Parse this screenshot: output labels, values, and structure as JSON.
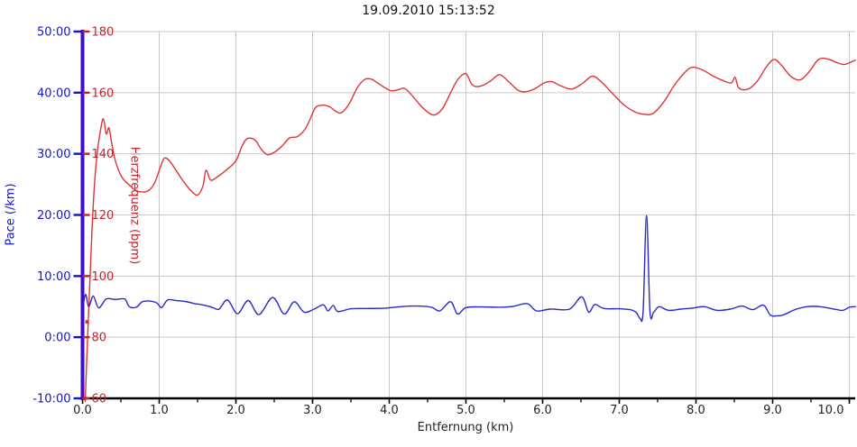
{
  "chart_data": {
    "type": "line",
    "title": "19.09.2010 15:13:52",
    "xlabel": "Entfernung (km)",
    "x_tick_labels": [
      "0.0",
      "1.0",
      "2.0",
      "3.0",
      "4.0",
      "5.0",
      "6.0",
      "7.0",
      "8.0",
      "9.0",
      "10.0"
    ],
    "x_tick_values": [
      0,
      1,
      2,
      3,
      4,
      5,
      6,
      7,
      8,
      9,
      10
    ],
    "x_minor_tick_interval": 0.5,
    "x_range": [
      0,
      10.08
    ],
    "grid": true,
    "grid_color": "#c8c8c8",
    "x_axis_color": "#000000",
    "y_axis_line_color": "#3e0fc6",
    "axes": {
      "pace": {
        "label": "Pace (/km)",
        "color": "#1414c8",
        "tick_labels": [
          "50:00",
          "40:00",
          "30:00",
          "20:00",
          "10:00",
          "0:00",
          "-10:00"
        ],
        "tick_values": [
          50,
          40,
          30,
          20,
          10,
          0,
          -10
        ],
        "range": [
          -10,
          50
        ],
        "unit": "min/km"
      },
      "hr": {
        "label": "Herzfrequenz (bpm)",
        "color": "#cc2029",
        "tick_labels": [
          "180",
          "160",
          "140",
          "120",
          "100",
          "80",
          "60"
        ],
        "tick_values": [
          180,
          160,
          140,
          120,
          100,
          80,
          60
        ],
        "range": [
          60,
          180
        ],
        "unit": "bpm"
      }
    },
    "start_marker": {
      "km": 0.06,
      "bpm": 85,
      "color": "#d93030"
    },
    "series": [
      {
        "name": "Herzfrequenz",
        "axis": "hr",
        "color": "#e03434",
        "points": [
          [
            0.035,
            59
          ],
          [
            0.06,
            76
          ],
          [
            0.09,
            95
          ],
          [
            0.12,
            113
          ],
          [
            0.15,
            128
          ],
          [
            0.19,
            140
          ],
          [
            0.23,
            147
          ],
          [
            0.27,
            151.5
          ],
          [
            0.31,
            146.5
          ],
          [
            0.345,
            148.5
          ],
          [
            0.38,
            143.5
          ],
          [
            0.43,
            137.5
          ],
          [
            0.51,
            132.5
          ],
          [
            0.6,
            130
          ],
          [
            0.7,
            128
          ],
          [
            0.78,
            127.5
          ],
          [
            0.86,
            128
          ],
          [
            0.94,
            130.5
          ],
          [
            1.02,
            136
          ],
          [
            1.07,
            138.6
          ],
          [
            1.14,
            137.5
          ],
          [
            1.24,
            133.8
          ],
          [
            1.33,
            130.5
          ],
          [
            1.42,
            127.8
          ],
          [
            1.5,
            126.5
          ],
          [
            1.57,
            129.5
          ],
          [
            1.61,
            134.6
          ],
          [
            1.67,
            131.4
          ],
          [
            1.76,
            132.5
          ],
          [
            1.88,
            134.8
          ],
          [
            2.0,
            137.7
          ],
          [
            2.08,
            142.5
          ],
          [
            2.15,
            145
          ],
          [
            2.25,
            144.5
          ],
          [
            2.33,
            141.5
          ],
          [
            2.41,
            139.7
          ],
          [
            2.5,
            140.5
          ],
          [
            2.6,
            142.5
          ],
          [
            2.7,
            145.2
          ],
          [
            2.8,
            145.6
          ],
          [
            2.9,
            148
          ],
          [
            2.97,
            151.5
          ],
          [
            3.04,
            155.2
          ],
          [
            3.13,
            155.9
          ],
          [
            3.22,
            155.4
          ],
          [
            3.31,
            153.8
          ],
          [
            3.38,
            153.5
          ],
          [
            3.48,
            156.5
          ],
          [
            3.58,
            161.5
          ],
          [
            3.68,
            164.3
          ],
          [
            3.77,
            164.4
          ],
          [
            3.86,
            163
          ],
          [
            3.95,
            161.5
          ],
          [
            4.03,
            160.6
          ],
          [
            4.12,
            161
          ],
          [
            4.2,
            161.4
          ],
          [
            4.3,
            159
          ],
          [
            4.42,
            155.5
          ],
          [
            4.52,
            153.3
          ],
          [
            4.6,
            152.8
          ],
          [
            4.7,
            155
          ],
          [
            4.8,
            160
          ],
          [
            4.9,
            164.5
          ],
          [
            5.0,
            166.2
          ],
          [
            5.07,
            163
          ],
          [
            5.13,
            162
          ],
          [
            5.22,
            162.4
          ],
          [
            5.32,
            163.8
          ],
          [
            5.44,
            165.9
          ],
          [
            5.56,
            163.5
          ],
          [
            5.68,
            160.8
          ],
          [
            5.78,
            160.3
          ],
          [
            5.9,
            161.3
          ],
          [
            6.02,
            163.2
          ],
          [
            6.12,
            163.6
          ],
          [
            6.24,
            162.2
          ],
          [
            6.38,
            161.2
          ],
          [
            6.52,
            163
          ],
          [
            6.65,
            165.4
          ],
          [
            6.78,
            163.2
          ],
          [
            6.92,
            159.5
          ],
          [
            7.06,
            156
          ],
          [
            7.18,
            154
          ],
          [
            7.3,
            153
          ],
          [
            7.44,
            153.2
          ],
          [
            7.58,
            157
          ],
          [
            7.72,
            162.5
          ],
          [
            7.85,
            166.5
          ],
          [
            7.95,
            168.3
          ],
          [
            8.08,
            167.5
          ],
          [
            8.22,
            165.5
          ],
          [
            8.35,
            164
          ],
          [
            8.46,
            163.2
          ],
          [
            8.51,
            165
          ],
          [
            8.56,
            161.5
          ],
          [
            8.68,
            161.2
          ],
          [
            8.8,
            163.8
          ],
          [
            8.92,
            168.5
          ],
          [
            9.02,
            170.9
          ],
          [
            9.12,
            168.8
          ],
          [
            9.24,
            165.3
          ],
          [
            9.36,
            164.2
          ],
          [
            9.48,
            167
          ],
          [
            9.6,
            170.9
          ],
          [
            9.72,
            171
          ],
          [
            9.84,
            169.8
          ],
          [
            9.93,
            169.2
          ],
          [
            10.0,
            169.8
          ],
          [
            10.08,
            170.6
          ]
        ]
      },
      {
        "name": "Pace",
        "axis": "pace",
        "color": "#2828cc",
        "points": [
          [
            0.0,
            4.6
          ],
          [
            0.04,
            7.0
          ],
          [
            0.08,
            5.0
          ],
          [
            0.14,
            6.75
          ],
          [
            0.21,
            4.8
          ],
          [
            0.31,
            6.25
          ],
          [
            0.43,
            6.15
          ],
          [
            0.55,
            6.25
          ],
          [
            0.61,
            5.0
          ],
          [
            0.7,
            4.9
          ],
          [
            0.78,
            5.8
          ],
          [
            0.88,
            5.9
          ],
          [
            0.97,
            5.6
          ],
          [
            1.03,
            4.85
          ],
          [
            1.11,
            6.1
          ],
          [
            1.22,
            6.0
          ],
          [
            1.34,
            5.85
          ],
          [
            1.46,
            5.5
          ],
          [
            1.58,
            5.25
          ],
          [
            1.7,
            4.85
          ],
          [
            1.78,
            4.6
          ],
          [
            1.89,
            6.1
          ],
          [
            2.02,
            3.85
          ],
          [
            2.16,
            6.0
          ],
          [
            2.3,
            3.7
          ],
          [
            2.48,
            6.5
          ],
          [
            2.63,
            3.8
          ],
          [
            2.76,
            5.8
          ],
          [
            2.89,
            4.1
          ],
          [
            3.02,
            4.6
          ],
          [
            3.14,
            5.3
          ],
          [
            3.2,
            4.3
          ],
          [
            3.27,
            5.2
          ],
          [
            3.33,
            4.2
          ],
          [
            3.5,
            4.65
          ],
          [
            3.7,
            4.7
          ],
          [
            3.95,
            4.75
          ],
          [
            4.15,
            5.0
          ],
          [
            4.35,
            5.1
          ],
          [
            4.55,
            4.9
          ],
          [
            4.66,
            4.3
          ],
          [
            4.8,
            5.8
          ],
          [
            4.89,
            3.8
          ],
          [
            5.0,
            4.85
          ],
          [
            5.2,
            4.95
          ],
          [
            5.45,
            4.9
          ],
          [
            5.62,
            5.05
          ],
          [
            5.8,
            5.5
          ],
          [
            5.92,
            4.3
          ],
          [
            6.1,
            4.6
          ],
          [
            6.35,
            4.6
          ],
          [
            6.51,
            6.6
          ],
          [
            6.6,
            4.1
          ],
          [
            6.68,
            5.35
          ],
          [
            6.8,
            4.7
          ],
          [
            7.0,
            4.65
          ],
          [
            7.14,
            4.5
          ],
          [
            7.22,
            4.05
          ],
          [
            7.27,
            3.1
          ],
          [
            7.31,
            4.2
          ],
          [
            7.355,
            19.9
          ],
          [
            7.4,
            4.2
          ],
          [
            7.45,
            4.15
          ],
          [
            7.52,
            5.0
          ],
          [
            7.64,
            4.4
          ],
          [
            7.8,
            4.6
          ],
          [
            7.95,
            4.75
          ],
          [
            8.11,
            5.0
          ],
          [
            8.27,
            4.4
          ],
          [
            8.45,
            4.6
          ],
          [
            8.6,
            5.1
          ],
          [
            8.74,
            4.5
          ],
          [
            8.88,
            5.25
          ],
          [
            8.97,
            3.6
          ],
          [
            9.06,
            3.5
          ],
          [
            9.14,
            3.65
          ],
          [
            9.29,
            4.5
          ],
          [
            9.45,
            5.0
          ],
          [
            9.62,
            5.0
          ],
          [
            9.84,
            4.5
          ],
          [
            9.92,
            4.4
          ],
          [
            10.0,
            4.9
          ],
          [
            10.08,
            5.0
          ]
        ]
      }
    ]
  }
}
